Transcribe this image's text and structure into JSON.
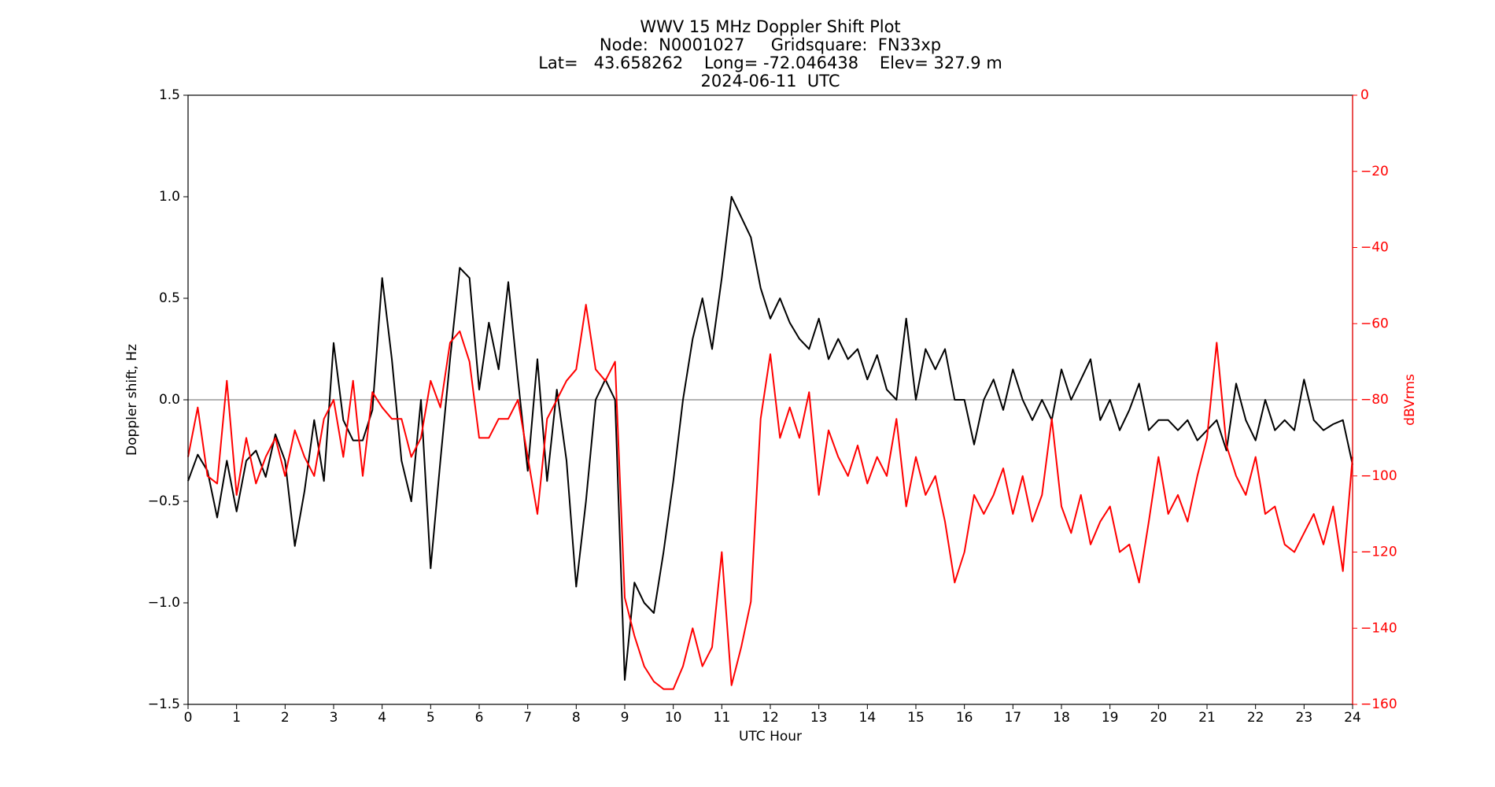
{
  "chart_data": {
    "type": "line",
    "title": [
      "WWV 15 MHz Doppler Shift Plot",
      "Node:  N0001027     Gridsquare:  FN33xp",
      "Lat=   43.658262    Long= -72.046438    Elev= 327.9 m",
      "2024-06-11  UTC"
    ],
    "xlabel": "UTC Hour",
    "ylabel": "Doppler shift, Hz",
    "y2label": "dBVrms",
    "xlim": [
      0,
      24
    ],
    "xticks": [
      0,
      1,
      2,
      3,
      4,
      5,
      6,
      7,
      8,
      9,
      10,
      11,
      12,
      13,
      14,
      15,
      16,
      17,
      18,
      19,
      20,
      21,
      22,
      23,
      24
    ],
    "ylim": [
      -1.5,
      1.5
    ],
    "yticks": [
      {
        "value": -1.5,
        "label": "−1.5"
      },
      {
        "value": -1,
        "label": "−1.0"
      },
      {
        "value": -0.5,
        "label": "−0.5"
      },
      {
        "value": 0,
        "label": "0.0"
      },
      {
        "value": 0.5,
        "label": "0.5"
      },
      {
        "value": 1,
        "label": "1.0"
      },
      {
        "value": 1.5,
        "label": "1.5"
      }
    ],
    "y2lim": [
      -160,
      0
    ],
    "y2ticks": [
      0,
      {
        "value": -20,
        "label": "−20"
      },
      {
        "value": -40,
        "label": "−40"
      },
      {
        "value": -60,
        "label": "−60"
      },
      {
        "value": -80,
        "label": "−80"
      },
      {
        "value": -100,
        "label": "−100"
      },
      {
        "value": -120,
        "label": "−120"
      },
      {
        "value": -140,
        "label": "−140"
      },
      {
        "value": -160,
        "label": "−160"
      }
    ],
    "reference_line": 0,
    "x": [
      0,
      0.2,
      0.4,
      0.6,
      0.8,
      1,
      1.2,
      1.4,
      1.6,
      1.8,
      2,
      2.2,
      2.4,
      2.6,
      2.8,
      3,
      3.2,
      3.4,
      3.6,
      3.8,
      4,
      4.2,
      4.4,
      4.6,
      4.8,
      5,
      5.2,
      5.4,
      5.6,
      5.8,
      6,
      6.2,
      6.4,
      6.6,
      6.8,
      7,
      7.2,
      7.4,
      7.6,
      7.8,
      8,
      8.2,
      8.4,
      8.6,
      8.8,
      9,
      9.2,
      9.4,
      9.6,
      9.8,
      10,
      10.2,
      10.4,
      10.6,
      10.8,
      11,
      11.2,
      11.4,
      11.6,
      11.8,
      12,
      12.2,
      12.4,
      12.6,
      12.8,
      13,
      13.2,
      13.4,
      13.6,
      13.8,
      14,
      14.2,
      14.4,
      14.6,
      14.8,
      15,
      15.2,
      15.4,
      15.6,
      15.8,
      16,
      16.2,
      16.4,
      16.6,
      16.8,
      17,
      17.2,
      17.4,
      17.6,
      17.8,
      18,
      18.2,
      18.4,
      18.6,
      18.8,
      19,
      19.2,
      19.4,
      19.6,
      19.8,
      20,
      20.2,
      20.4,
      20.6,
      20.8,
      21,
      21.2,
      21.4,
      21.6,
      21.8,
      22,
      22.2,
      22.4,
      22.6,
      22.8,
      23,
      23.2,
      23.4,
      23.6,
      23.8,
      24
    ],
    "series": [
      {
        "name": "Doppler shift",
        "color": "#000000",
        "values": [
          -0.4,
          -0.27,
          -0.35,
          -0.58,
          -0.3,
          -0.55,
          -0.3,
          -0.25,
          -0.38,
          -0.17,
          -0.3,
          -0.72,
          -0.45,
          -0.1,
          -0.4,
          0.28,
          -0.1,
          -0.2,
          -0.2,
          -0.05,
          0.6,
          0.2,
          -0.3,
          -0.5,
          0,
          -0.83,
          -0.3,
          0.2,
          0.65,
          0.6,
          0.05,
          0.38,
          0.15,
          0.58,
          0.1,
          -0.35,
          0.2,
          -0.4,
          0.05,
          -0.3,
          -0.92,
          -0.5,
          0,
          0.1,
          0,
          -1.38,
          -0.9,
          -1,
          -1.05,
          -0.75,
          -0.4,
          0,
          0.3,
          0.5,
          0.25,
          0.6,
          1,
          0.9,
          0.8,
          0.55,
          0.4,
          0.5,
          0.38,
          0.3,
          0.25,
          0.4,
          0.2,
          0.3,
          0.2,
          0.25,
          0.1,
          0.22,
          0.05,
          0,
          0.4,
          0,
          0.25,
          0.15,
          0.25,
          0,
          0,
          -0.22,
          0,
          0.1,
          -0.05,
          0.15,
          0,
          -0.1,
          0,
          -0.1,
          0.15,
          0,
          0.1,
          0.2,
          -0.1,
          0,
          -0.15,
          -0.05,
          0.08,
          -0.15,
          -0.1,
          -0.1,
          -0.15,
          -0.1,
          -0.2,
          -0.15,
          -0.1,
          -0.25,
          0.08,
          -0.1,
          -0.2,
          0,
          -0.15,
          -0.1,
          -0.15,
          0.1,
          -0.1,
          -0.15,
          -0.12,
          -0.1,
          -0.32
        ]
      },
      {
        "name": "dBVrms",
        "color": "#ff0000",
        "axis": "y2",
        "values": [
          -95,
          -82,
          -100,
          -102,
          -75,
          -105,
          -90,
          -102,
          -95,
          -90,
          -100,
          -88,
          -95,
          -100,
          -85,
          -80,
          -95,
          -75,
          -100,
          -78,
          -82,
          -85,
          -85,
          -95,
          -90,
          -75,
          -82,
          -65,
          -62,
          -70,
          -90,
          -90,
          -85,
          -85,
          -80,
          -95,
          -110,
          -85,
          -80,
          -75,
          -72,
          -55,
          -72,
          -75,
          -70,
          -132,
          -142,
          -150,
          -154,
          -156,
          -156,
          -150,
          -140,
          -150,
          -145,
          -120,
          -155,
          -145,
          -133,
          -85,
          -68,
          -90,
          -82,
          -90,
          -78,
          -105,
          -88,
          -95,
          -100,
          -92,
          -102,
          -95,
          -100,
          -85,
          -108,
          -95,
          -105,
          -100,
          -112,
          -128,
          -120,
          -105,
          -110,
          -105,
          -98,
          -110,
          -100,
          -112,
          -105,
          -85,
          -108,
          -115,
          -105,
          -118,
          -112,
          -108,
          -120,
          -118,
          -128,
          -112,
          -95,
          -110,
          -105,
          -112,
          -100,
          -90,
          -65,
          -92,
          -100,
          -105,
          -95,
          -110,
          -108,
          -118,
          -120,
          -115,
          -110,
          -118,
          -108,
          -125,
          -95
        ]
      }
    ]
  }
}
